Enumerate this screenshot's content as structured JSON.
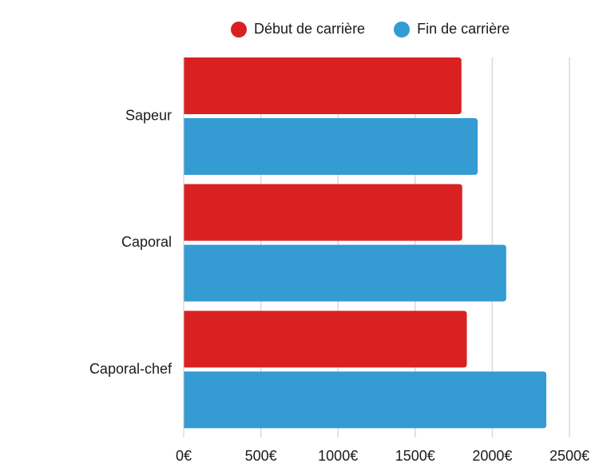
{
  "chart_data": {
    "type": "bar",
    "orientation": "horizontal",
    "categories": [
      "Sapeur",
      "Caporal",
      "Caporal-chef"
    ],
    "series": [
      {
        "name": "Début de carrière",
        "color": "#d92121",
        "values": [
          1800,
          1805,
          1835
        ]
      },
      {
        "name": "Fin de carrière",
        "color": "#349bd3",
        "values": [
          1905,
          2090,
          2350
        ]
      }
    ],
    "xlim": [
      0,
      2500
    ],
    "xticks": [
      0,
      500,
      1000,
      1500,
      2000,
      2500
    ],
    "xtick_labels": [
      "0€",
      "500€",
      "1000€",
      "1500€",
      "2000€",
      "2500€"
    ],
    "grid": true,
    "legend_position": "top"
  }
}
